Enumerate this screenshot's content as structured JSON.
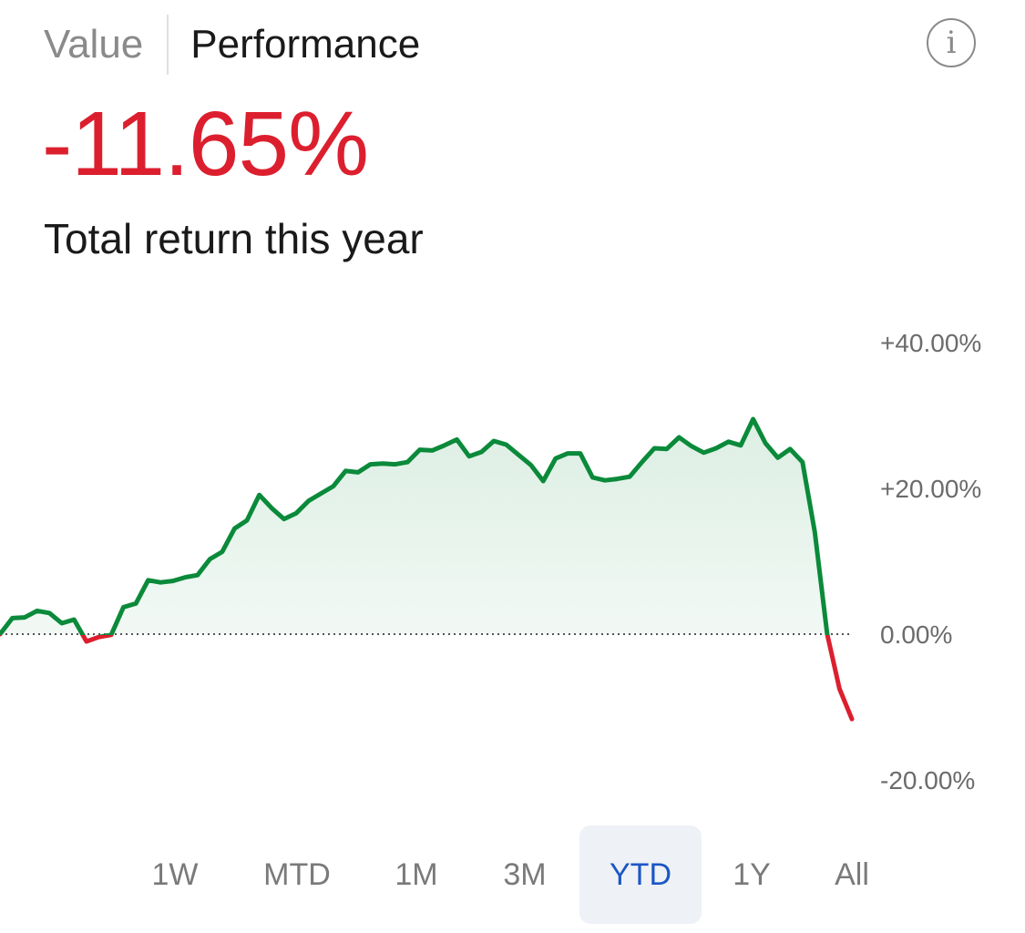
{
  "tabs": [
    {
      "label": "Value",
      "active": false
    },
    {
      "label": "Performance",
      "active": true
    }
  ],
  "info_icon": "info-icon",
  "summary": {
    "value": "-11.65%",
    "label": "Total return this year"
  },
  "colors": {
    "positive": "#0a8a3a",
    "negative": "#dc1f2e",
    "selected_range": "#1a56c6"
  },
  "chart_data": {
    "type": "line",
    "ylim": [
      -20,
      40
    ],
    "y_ticks": [
      "+40.00%",
      "+20.00%",
      "0.00%",
      "-20.00%"
    ],
    "baseline": 0,
    "values": [
      0,
      2.2,
      2.3,
      3.2,
      2.9,
      1.5,
      2.0,
      -1.0,
      -0.4,
      -0.1,
      3.7,
      4.2,
      7.4,
      7.1,
      7.3,
      7.8,
      8.1,
      10.3,
      11.3,
      14.5,
      15.6,
      19.1,
      17.3,
      15.8,
      16.6,
      18.3,
      19.3,
      20.3,
      22.4,
      22.2,
      23.3,
      23.4,
      23.3,
      23.6,
      25.3,
      25.2,
      25.9,
      26.7,
      24.4,
      25.0,
      26.5,
      26.0,
      24.6,
      23.2,
      21.0,
      24.1,
      24.8,
      24.8,
      21.5,
      21.1,
      21.3,
      21.6,
      23.6,
      25.5,
      25.4,
      27.0,
      25.8,
      24.9,
      25.5,
      26.4,
      25.9,
      29.5,
      26.2,
      24.2,
      25.4,
      23.6,
      14.0,
      0.0,
      -7.5,
      -11.65
    ]
  },
  "ranges": [
    {
      "label": "1W",
      "selected": false
    },
    {
      "label": "MTD",
      "selected": false
    },
    {
      "label": "1M",
      "selected": false
    },
    {
      "label": "3M",
      "selected": false
    },
    {
      "label": "YTD",
      "selected": true
    },
    {
      "label": "1Y",
      "selected": false
    },
    {
      "label": "All",
      "selected": false
    }
  ]
}
